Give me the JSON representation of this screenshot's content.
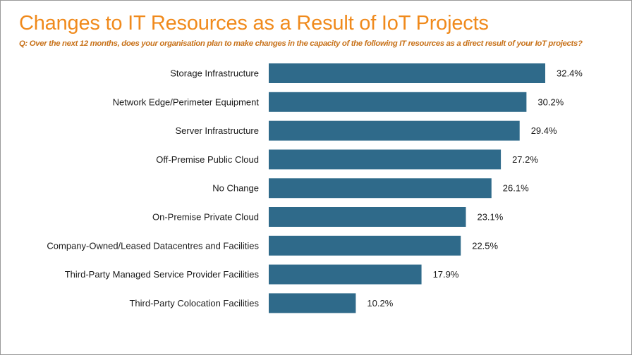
{
  "header": {
    "title": "Changes to IT Resources as a Result of IoT Projects",
    "subtitle": "Q: Over the next 12 months, does your organisation plan to make changes in the capacity of the following IT resources as a direct result of your IoT projects?"
  },
  "colors": {
    "bar": "#2f6a8a",
    "title": "#f08a1c",
    "subtitle": "#c8721a"
  },
  "chart_data": {
    "type": "bar",
    "orientation": "horizontal",
    "title": "Changes to IT Resources as a Result of IoT Projects",
    "subtitle": "Q: Over the next 12 months, does your organisation plan to make changes in the capacity of the following IT resources as a direct result of your IoT projects?",
    "categories": [
      "Storage Infrastructure",
      "Network Edge/Perimeter Equipment",
      "Server Infrastructure",
      "Off-Premise Public Cloud",
      "No Change",
      "On-Premise Private Cloud",
      "Company-Owned/Leased Datacentres and Facilities",
      "Third-Party Managed Service Provider Facilities",
      "Third-Party Colocation Facilities"
    ],
    "values": [
      32.4,
      30.2,
      29.4,
      27.2,
      26.1,
      23.1,
      22.5,
      17.9,
      10.2
    ],
    "value_labels": [
      "32.4%",
      "30.2%",
      "29.4%",
      "27.2%",
      "26.1%",
      "23.1%",
      "22.5%",
      "17.9%",
      "10.2%"
    ],
    "unit": "%",
    "xlabel": "",
    "ylabel": "",
    "xlim": [
      0,
      32.4
    ],
    "grid": false,
    "legend": "none"
  }
}
